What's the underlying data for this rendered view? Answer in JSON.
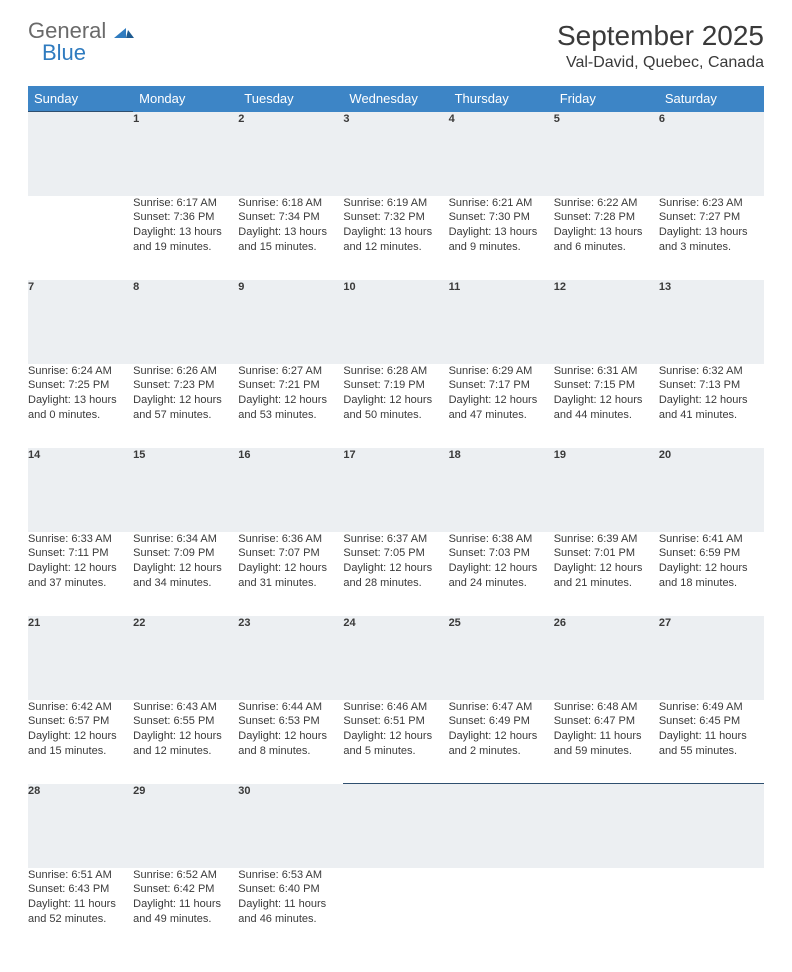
{
  "logo": {
    "word1": "General",
    "word2": "Blue"
  },
  "title": "September 2025",
  "location": "Val-David, Quebec, Canada",
  "colors": {
    "header_bg": "#3d85c6",
    "header_fg": "#ffffff",
    "daynum_bg": "#eceff2",
    "daynum_border": "#2f4f6f",
    "text": "#3a3a3a",
    "logo_gray": "#6a6a6a",
    "logo_blue": "#2f7bbf",
    "page_bg": "#ffffff"
  },
  "fonts": {
    "title_size_pt": 21,
    "location_size_pt": 12,
    "dayheader_size_pt": 10,
    "daynum_size_pt": 9,
    "body_size_pt": 8
  },
  "day_headers": [
    "Sunday",
    "Monday",
    "Tuesday",
    "Wednesday",
    "Thursday",
    "Friday",
    "Saturday"
  ],
  "weeks": [
    {
      "nums": [
        "",
        "1",
        "2",
        "3",
        "4",
        "5",
        "6"
      ],
      "cells": [
        null,
        {
          "sunrise": "Sunrise: 6:17 AM",
          "sunset": "Sunset: 7:36 PM",
          "day1": "Daylight: 13 hours",
          "day2": "and 19 minutes."
        },
        {
          "sunrise": "Sunrise: 6:18 AM",
          "sunset": "Sunset: 7:34 PM",
          "day1": "Daylight: 13 hours",
          "day2": "and 15 minutes."
        },
        {
          "sunrise": "Sunrise: 6:19 AM",
          "sunset": "Sunset: 7:32 PM",
          "day1": "Daylight: 13 hours",
          "day2": "and 12 minutes."
        },
        {
          "sunrise": "Sunrise: 6:21 AM",
          "sunset": "Sunset: 7:30 PM",
          "day1": "Daylight: 13 hours",
          "day2": "and 9 minutes."
        },
        {
          "sunrise": "Sunrise: 6:22 AM",
          "sunset": "Sunset: 7:28 PM",
          "day1": "Daylight: 13 hours",
          "day2": "and 6 minutes."
        },
        {
          "sunrise": "Sunrise: 6:23 AM",
          "sunset": "Sunset: 7:27 PM",
          "day1": "Daylight: 13 hours",
          "day2": "and 3 minutes."
        }
      ]
    },
    {
      "nums": [
        "7",
        "8",
        "9",
        "10",
        "11",
        "12",
        "13"
      ],
      "cells": [
        {
          "sunrise": "Sunrise: 6:24 AM",
          "sunset": "Sunset: 7:25 PM",
          "day1": "Daylight: 13 hours",
          "day2": "and 0 minutes."
        },
        {
          "sunrise": "Sunrise: 6:26 AM",
          "sunset": "Sunset: 7:23 PM",
          "day1": "Daylight: 12 hours",
          "day2": "and 57 minutes."
        },
        {
          "sunrise": "Sunrise: 6:27 AM",
          "sunset": "Sunset: 7:21 PM",
          "day1": "Daylight: 12 hours",
          "day2": "and 53 minutes."
        },
        {
          "sunrise": "Sunrise: 6:28 AM",
          "sunset": "Sunset: 7:19 PM",
          "day1": "Daylight: 12 hours",
          "day2": "and 50 minutes."
        },
        {
          "sunrise": "Sunrise: 6:29 AM",
          "sunset": "Sunset: 7:17 PM",
          "day1": "Daylight: 12 hours",
          "day2": "and 47 minutes."
        },
        {
          "sunrise": "Sunrise: 6:31 AM",
          "sunset": "Sunset: 7:15 PM",
          "day1": "Daylight: 12 hours",
          "day2": "and 44 minutes."
        },
        {
          "sunrise": "Sunrise: 6:32 AM",
          "sunset": "Sunset: 7:13 PM",
          "day1": "Daylight: 12 hours",
          "day2": "and 41 minutes."
        }
      ]
    },
    {
      "nums": [
        "14",
        "15",
        "16",
        "17",
        "18",
        "19",
        "20"
      ],
      "cells": [
        {
          "sunrise": "Sunrise: 6:33 AM",
          "sunset": "Sunset: 7:11 PM",
          "day1": "Daylight: 12 hours",
          "day2": "and 37 minutes."
        },
        {
          "sunrise": "Sunrise: 6:34 AM",
          "sunset": "Sunset: 7:09 PM",
          "day1": "Daylight: 12 hours",
          "day2": "and 34 minutes."
        },
        {
          "sunrise": "Sunrise: 6:36 AM",
          "sunset": "Sunset: 7:07 PM",
          "day1": "Daylight: 12 hours",
          "day2": "and 31 minutes."
        },
        {
          "sunrise": "Sunrise: 6:37 AM",
          "sunset": "Sunset: 7:05 PM",
          "day1": "Daylight: 12 hours",
          "day2": "and 28 minutes."
        },
        {
          "sunrise": "Sunrise: 6:38 AM",
          "sunset": "Sunset: 7:03 PM",
          "day1": "Daylight: 12 hours",
          "day2": "and 24 minutes."
        },
        {
          "sunrise": "Sunrise: 6:39 AM",
          "sunset": "Sunset: 7:01 PM",
          "day1": "Daylight: 12 hours",
          "day2": "and 21 minutes."
        },
        {
          "sunrise": "Sunrise: 6:41 AM",
          "sunset": "Sunset: 6:59 PM",
          "day1": "Daylight: 12 hours",
          "day2": "and 18 minutes."
        }
      ]
    },
    {
      "nums": [
        "21",
        "22",
        "23",
        "24",
        "25",
        "26",
        "27"
      ],
      "cells": [
        {
          "sunrise": "Sunrise: 6:42 AM",
          "sunset": "Sunset: 6:57 PM",
          "day1": "Daylight: 12 hours",
          "day2": "and 15 minutes."
        },
        {
          "sunrise": "Sunrise: 6:43 AM",
          "sunset": "Sunset: 6:55 PM",
          "day1": "Daylight: 12 hours",
          "day2": "and 12 minutes."
        },
        {
          "sunrise": "Sunrise: 6:44 AM",
          "sunset": "Sunset: 6:53 PM",
          "day1": "Daylight: 12 hours",
          "day2": "and 8 minutes."
        },
        {
          "sunrise": "Sunrise: 6:46 AM",
          "sunset": "Sunset: 6:51 PM",
          "day1": "Daylight: 12 hours",
          "day2": "and 5 minutes."
        },
        {
          "sunrise": "Sunrise: 6:47 AM",
          "sunset": "Sunset: 6:49 PM",
          "day1": "Daylight: 12 hours",
          "day2": "and 2 minutes."
        },
        {
          "sunrise": "Sunrise: 6:48 AM",
          "sunset": "Sunset: 6:47 PM",
          "day1": "Daylight: 11 hours",
          "day2": "and 59 minutes."
        },
        {
          "sunrise": "Sunrise: 6:49 AM",
          "sunset": "Sunset: 6:45 PM",
          "day1": "Daylight: 11 hours",
          "day2": "and 55 minutes."
        }
      ]
    },
    {
      "nums": [
        "28",
        "29",
        "30",
        "",
        "",
        "",
        ""
      ],
      "cells": [
        {
          "sunrise": "Sunrise: 6:51 AM",
          "sunset": "Sunset: 6:43 PM",
          "day1": "Daylight: 11 hours",
          "day2": "and 52 minutes."
        },
        {
          "sunrise": "Sunrise: 6:52 AM",
          "sunset": "Sunset: 6:42 PM",
          "day1": "Daylight: 11 hours",
          "day2": "and 49 minutes."
        },
        {
          "sunrise": "Sunrise: 6:53 AM",
          "sunset": "Sunset: 6:40 PM",
          "day1": "Daylight: 11 hours",
          "day2": "and 46 minutes."
        },
        null,
        null,
        null,
        null
      ]
    }
  ]
}
